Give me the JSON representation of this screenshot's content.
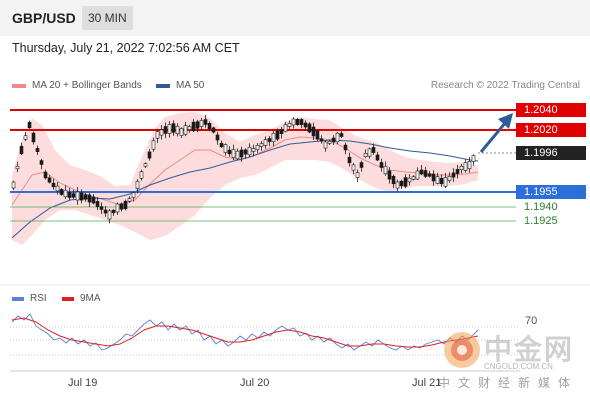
{
  "header": {
    "pair": "GBP/USD",
    "timeframe": "30 MIN"
  },
  "datetime": "Thursday, July 21, 2022 7:02:56 AM CET",
  "legend": {
    "bollinger": {
      "label": "MA 20 + Bollinger Bands",
      "color": "#f08a8a"
    },
    "ma50": {
      "label": "MA 50",
      "color": "#2e5b9a"
    }
  },
  "credit": "Research © 2022 Trading Central",
  "price_labels": {
    "r2": "1.2040",
    "r1": "1.2020",
    "current": "1.1996",
    "pivot": "1.1955",
    "s1": "1.1940",
    "s2": "1.1925"
  },
  "rsi_legend": {
    "rsi": {
      "label": "RSI",
      "color": "#5a7fdc"
    },
    "ma9": {
      "label": "9MA",
      "color": "#e02020"
    }
  },
  "rsi_level": "70",
  "x_axis": [
    "Jul 19",
    "Jul 20",
    "Jul 21"
  ],
  "watermark": {
    "brand": "中金网",
    "url": "CNGOLD.COM.CN",
    "subtitle": "中文财经新媒体"
  },
  "colors": {
    "resistance": "#e00000",
    "pivot": "#2a6fdb",
    "support": "#4caf50",
    "bull": "#ffffff",
    "bear": "#1a1a1a"
  }
}
